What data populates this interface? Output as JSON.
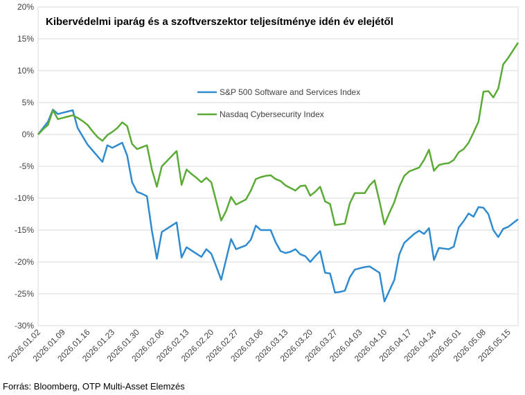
{
  "chart_data": {
    "type": "line",
    "title": "Kibervédelmi iparág és a szoftverszektor teljesítménye idén év elejétől",
    "source": "Forrás: Bloomberg, OTP Multi-Asset Elemzés",
    "categories": [
      "2026.01.02",
      null,
      null,
      null,
      null,
      "2026.01.09",
      null,
      null,
      null,
      null,
      "2026.01.16",
      null,
      null,
      null,
      null,
      "2026.01.23",
      null,
      null,
      null,
      null,
      "2026.01.30",
      null,
      null,
      null,
      null,
      "2026.02.06",
      null,
      null,
      null,
      null,
      "2026.02.13",
      null,
      null,
      null,
      null,
      "2026.02.20",
      null,
      null,
      null,
      null,
      "2026.02.27",
      null,
      null,
      null,
      null,
      "2026.03.06",
      null,
      null,
      null,
      null,
      "2026.03.13",
      null,
      null,
      null,
      null,
      "2026.03.20",
      null,
      null,
      null,
      null,
      "2026.03.27",
      null,
      null,
      null,
      null,
      "2026.04.03",
      null,
      null,
      null,
      null,
      "2026.04.10",
      null,
      null,
      null,
      null,
      "2026.04.17",
      null,
      null,
      null,
      null,
      "2026.04.24",
      null,
      null,
      null,
      null,
      "2026.05.01",
      null,
      null,
      null,
      null,
      "2026.05.08",
      null,
      null,
      null,
      null,
      "2026.05.15",
      null,
      null
    ],
    "series": [
      {
        "name": "S&P 500 Software and Services Index",
        "color": "#2e8bd0",
        "values": [
          0,
          1,
          2,
          3.9,
          3.2,
          3.4,
          3.6,
          3.8,
          1,
          -0.3,
          -1.6,
          -2.5,
          -3.4,
          -4.3,
          -1.7,
          -2.1,
          -1.7,
          -1.3,
          -3.3,
          -7.5,
          -9,
          -9.3,
          -9.7,
          -15.1,
          -19.5,
          -15.3,
          -14.8,
          -14.3,
          -13.8,
          -19.3,
          -17.7,
          -18.2,
          -18.7,
          -19.2,
          -18,
          -18.7,
          -20.7,
          -22.8,
          -19.6,
          -16.4,
          -18,
          -17.7,
          -17.4,
          -16.5,
          -14.3,
          -15,
          -15,
          -15,
          -16.9,
          -18.3,
          -18.6,
          -18.4,
          -18,
          -18.8,
          -19.1,
          -20,
          -19.1,
          -18.3,
          -21.7,
          -21.8,
          -24.8,
          -24.7,
          -24.5,
          -22.4,
          -21.2,
          -21,
          -20.8,
          -20.7,
          -21.2,
          -21.7,
          -26.2,
          -24.5,
          -22.8,
          -18.8,
          -17,
          -16.3,
          -15.6,
          -15.1,
          -15.6,
          -14.7,
          -19.7,
          -17.8,
          -17.9,
          -18,
          -17.6,
          -14.6,
          -13.6,
          -12.4,
          -12.9,
          -11.4,
          -11.5,
          -12.5,
          -15,
          -16.1,
          -14.8,
          -14.5,
          -13.9,
          -13.3
        ]
      },
      {
        "name": "Nasdaq Cybersecurity Index",
        "color": "#5aaa35",
        "values": [
          0,
          0.8,
          1.5,
          3.8,
          2.4,
          2.6,
          2.8,
          3,
          2.6,
          2.1,
          1.5,
          0.5,
          -0.4,
          -1,
          -0.1,
          0.4,
          1,
          1.9,
          1.3,
          -1.5,
          -2.3,
          -2,
          -1.7,
          -5.5,
          -8.2,
          -5,
          -4.2,
          -3.4,
          -2.6,
          -7.9,
          -5.5,
          -6.2,
          -6.8,
          -7.5,
          -6.8,
          -7.5,
          -10.5,
          -13.5,
          -12,
          -9.8,
          -11,
          -10.6,
          -10.2,
          -8.8,
          -7,
          -6.7,
          -6.5,
          -6.4,
          -7,
          -7.3,
          -8,
          -8.4,
          -8.8,
          -8.1,
          -8,
          -9.6,
          -9,
          -8.2,
          -10.5,
          -10.9,
          -14.2,
          -14.1,
          -14,
          -10.8,
          -9.2,
          -9.2,
          -9.2,
          -8,
          -7.2,
          -10.5,
          -14.1,
          -12.3,
          -10.6,
          -8.2,
          -6.5,
          -5.8,
          -5.5,
          -5.2,
          -4,
          -2.4,
          -5.7,
          -4.8,
          -4.6,
          -4.5,
          -4,
          -2.8,
          -2.3,
          -1.3,
          0.3,
          2,
          6.7,
          6.8,
          5.8,
          7.2,
          11,
          12,
          13.2,
          14.4
        ]
      }
    ],
    "ylim": [
      -30,
      20
    ],
    "yticks": [
      {
        "value": -30,
        "label": "-30%"
      },
      {
        "value": -25,
        "label": "-25%"
      },
      {
        "value": -20,
        "label": "-20%"
      },
      {
        "value": -15,
        "label": "-15%"
      },
      {
        "value": -10,
        "label": "-10%"
      },
      {
        "value": -5,
        "label": "-5%"
      },
      {
        "value": 0,
        "label": "0%"
      },
      {
        "value": 5,
        "label": "5%"
      },
      {
        "value": 10,
        "label": "10%"
      },
      {
        "value": 15,
        "label": "15%"
      },
      {
        "value": 20,
        "label": "20%"
      }
    ],
    "grid": true
  }
}
